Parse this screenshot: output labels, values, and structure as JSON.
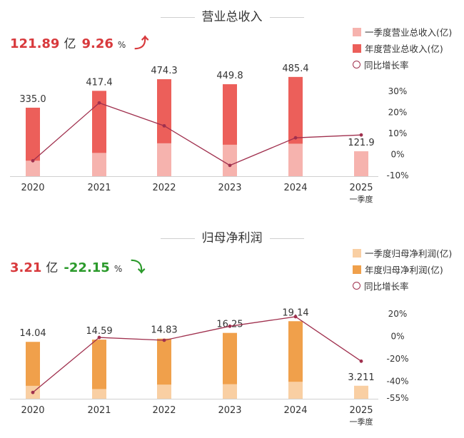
{
  "chart_data": [
    {
      "type": "bar",
      "title": "营业总收入",
      "headline": {
        "value": "121.89",
        "unit": "亿",
        "change": "9.26",
        "pct_sign": "%",
        "direction": "up"
      },
      "categories": [
        "2020",
        "2021",
        "2022",
        "2023",
        "2024",
        "2025"
      ],
      "category_sub": [
        "",
        "",
        "",
        "",
        "",
        "一季度"
      ],
      "series": [
        {
          "name": "一季度营业总收入(亿)",
          "kind": "bar",
          "values": [
            76,
            114,
            161,
            154,
            159,
            121.9
          ]
        },
        {
          "name": "年度营业总收入(亿)",
          "kind": "bar",
          "values": [
            335.0,
            417.4,
            474.3,
            449.8,
            485.4,
            null
          ]
        },
        {
          "name": "同比增长率",
          "kind": "line",
          "axis": "right",
          "values": [
            -3.0,
            24.5,
            13.6,
            -5.2,
            7.9,
            9.26
          ]
        }
      ],
      "bar_labels": [
        "335.0",
        "417.4",
        "474.3",
        "449.8",
        "485.4",
        "121.9"
      ],
      "y_right": {
        "ticks": [
          30,
          20,
          10,
          0,
          -10
        ],
        "tick_labels": [
          "30%",
          "20%",
          "10%",
          "0%",
          "-10%"
        ],
        "range": [
          -10,
          30
        ]
      },
      "y_left_range": [
        0,
        600
      ],
      "colors": {
        "quarter": "#f6b3ae",
        "annual": "#ec5f5a",
        "line": "#a0304e"
      },
      "legend_position": "top-right"
    },
    {
      "type": "bar",
      "title": "归母净利润",
      "headline": {
        "value": "3.21",
        "unit": "亿",
        "change": "-22.15",
        "pct_sign": "%",
        "direction": "down"
      },
      "categories": [
        "2020",
        "2021",
        "2022",
        "2023",
        "2024",
        "2025"
      ],
      "category_sub": [
        "",
        "",
        "",
        "",
        "",
        "一季度"
      ],
      "series": [
        {
          "name": "一季度归母净利润(亿)",
          "kind": "bar",
          "values": [
            3.2,
            2.4,
            3.5,
            3.6,
            4.2,
            3.211
          ]
        },
        {
          "name": "年度归母净利润(亿)",
          "kind": "bar",
          "values": [
            14.04,
            14.59,
            14.83,
            16.25,
            19.14,
            null
          ]
        },
        {
          "name": "同比增长率",
          "kind": "line",
          "axis": "right",
          "values": [
            -50,
            -1,
            -3.5,
            9,
            17.5,
            -22.15
          ]
        }
      ],
      "bar_labels": [
        "14.04",
        "14.59",
        "14.83",
        "16.25",
        "19.14",
        "3.211"
      ],
      "y_right": {
        "ticks": [
          20,
          0,
          -20,
          -40,
          -55
        ],
        "tick_labels": [
          "20%",
          "0%",
          "-20%",
          "-40%",
          "-55%"
        ],
        "range": [
          -55,
          20
        ]
      },
      "y_left_range": [
        0,
        22
      ],
      "colors": {
        "quarter": "#f9cfa3",
        "annual": "#f0a04b",
        "line": "#a0304e"
      },
      "legend_position": "top-right"
    }
  ]
}
